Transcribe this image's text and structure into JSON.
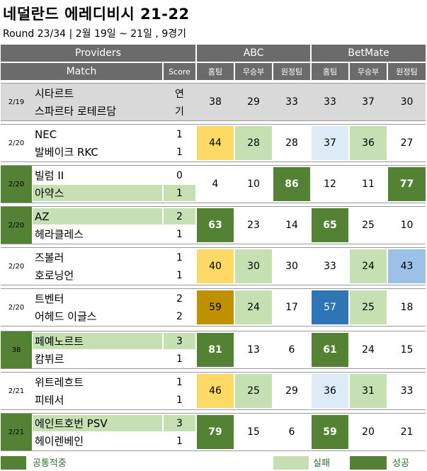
{
  "title": "네덜란드 에레디비시 21-22",
  "subtitle": "Round 23/34 | 2월 19일 ~ 21일 , 9경기",
  "header": {
    "providers": "Providers",
    "match": "Match",
    "score": "Score",
    "abc": "ABC",
    "betmate": "BetMate",
    "home": "홈팀",
    "draw": "무승부",
    "away": "원정팀"
  },
  "matches": [
    {
      "date": "2/19",
      "home": "시타르트",
      "away": "스파르타 로테르담",
      "hs": "연",
      "as": "기",
      "abc": [
        "38",
        "29",
        "33"
      ],
      "bm": [
        "33",
        "37",
        "30"
      ]
    },
    {
      "date": "2/20",
      "home": "NEC",
      "away": "발베이크 RKC",
      "hs": "1",
      "as": "1",
      "abc": [
        "44",
        "28",
        "28"
      ],
      "bm": [
        "37",
        "36",
        "27"
      ]
    },
    {
      "date": "2/20",
      "home": "빌럼 II",
      "away": "아약스",
      "hs": "0",
      "as": "1",
      "abc": [
        "4",
        "10",
        "86"
      ],
      "bm": [
        "12",
        "11",
        "77"
      ]
    },
    {
      "date": "2/20",
      "home": "AZ",
      "away": "헤라클레스",
      "hs": "2",
      "as": "1",
      "abc": [
        "63",
        "23",
        "14"
      ],
      "bm": [
        "65",
        "25",
        "10"
      ]
    },
    {
      "date": "2/20",
      "home": "즈볼러",
      "away": "호로닝언",
      "hs": "1",
      "as": "1",
      "abc": [
        "40",
        "30",
        "30"
      ],
      "bm": [
        "33",
        "24",
        "43"
      ]
    },
    {
      "date": "2/20",
      "home": "트벤터",
      "away": "어헤드 이글스",
      "hs": "2",
      "as": "2",
      "abc": [
        "59",
        "24",
        "17"
      ],
      "bm": [
        "57",
        "25",
        "18"
      ]
    },
    {
      "date": "38",
      "home": "페예노르트",
      "away": "캄뷔르",
      "hs": "3",
      "as": "1",
      "abc": [
        "81",
        "13",
        "6"
      ],
      "bm": [
        "61",
        "24",
        "15"
      ]
    },
    {
      "date": "2/21",
      "home": "위트레흐트",
      "away": "피테서",
      "hs": "1",
      "as": "1",
      "abc": [
        "46",
        "25",
        "29"
      ],
      "bm": [
        "36",
        "31",
        "33"
      ]
    },
    {
      "date": "2/21",
      "home": "에인트호번 PSV",
      "away": "헤이렌베인",
      "hs": "3",
      "as": "1",
      "abc": [
        "79",
        "15",
        "6"
      ],
      "bm": [
        "59",
        "20",
        "21"
      ]
    }
  ],
  "legend": {
    "common": "공통적중",
    "fail": "실패",
    "success": "성공"
  },
  "colors": {
    "header": "#6b6b6b",
    "dark_green": "#548235",
    "light_green": "#c6e0b4",
    "yellow": "#ffd966",
    "dark_gold": "#bf9000",
    "light_blue": "#ddebf7",
    "mid_blue": "#9bc2e6",
    "dark_blue": "#2e75b6",
    "grey_row": "#d9d9d9"
  }
}
